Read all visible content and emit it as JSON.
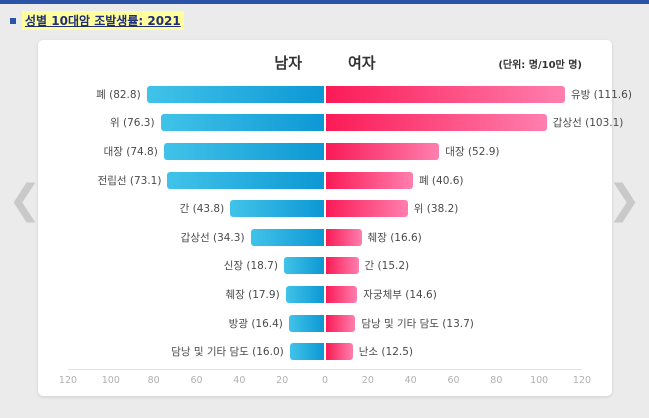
{
  "page": {
    "title": "성별 10대암 조발생률: 2021"
  },
  "carousel": {
    "prev": "❮",
    "next": "❯"
  },
  "chart_data": {
    "type": "bar",
    "subtype": "population-pyramid",
    "title": "성별 10대암 조발생률: 2021",
    "unit_label": "(단위: 명/10만 명)",
    "left_header": "남자",
    "right_header": "여자",
    "xlim": 120,
    "axis_ticks": [
      120,
      100,
      80,
      60,
      40,
      20,
      0,
      20,
      40,
      60,
      80,
      100,
      120
    ],
    "series": [
      {
        "name": "남자",
        "side": "left",
        "gradient": [
          "#41c3e9",
          "#0d98d4"
        ],
        "items": [
          {
            "label": "폐",
            "value": 82.8
          },
          {
            "label": "위",
            "value": 76.3
          },
          {
            "label": "대장",
            "value": 74.8
          },
          {
            "label": "전립선",
            "value": 73.1
          },
          {
            "label": "간",
            "value": 43.8
          },
          {
            "label": "갑상선",
            "value": 34.3
          },
          {
            "label": "신장",
            "value": 18.7
          },
          {
            "label": "췌장",
            "value": 17.9
          },
          {
            "label": "방광",
            "value": 16.4
          },
          {
            "label": "담낭 및 기타 담도",
            "value": 16.0
          }
        ]
      },
      {
        "name": "여자",
        "side": "right",
        "gradient": [
          "#fb1a56",
          "#ff7fae"
        ],
        "items": [
          {
            "label": "유방",
            "value": 111.6
          },
          {
            "label": "갑상선",
            "value": 103.1
          },
          {
            "label": "대장",
            "value": 52.9
          },
          {
            "label": "폐",
            "value": 40.6
          },
          {
            "label": "위",
            "value": 38.2
          },
          {
            "label": "췌장",
            "value": 16.6
          },
          {
            "label": "간",
            "value": 15.2
          },
          {
            "label": "자궁체부",
            "value": 14.6
          },
          {
            "label": "담낭 및 기타 담도",
            "value": 13.7
          },
          {
            "label": "난소",
            "value": 12.5
          }
        ]
      }
    ]
  }
}
